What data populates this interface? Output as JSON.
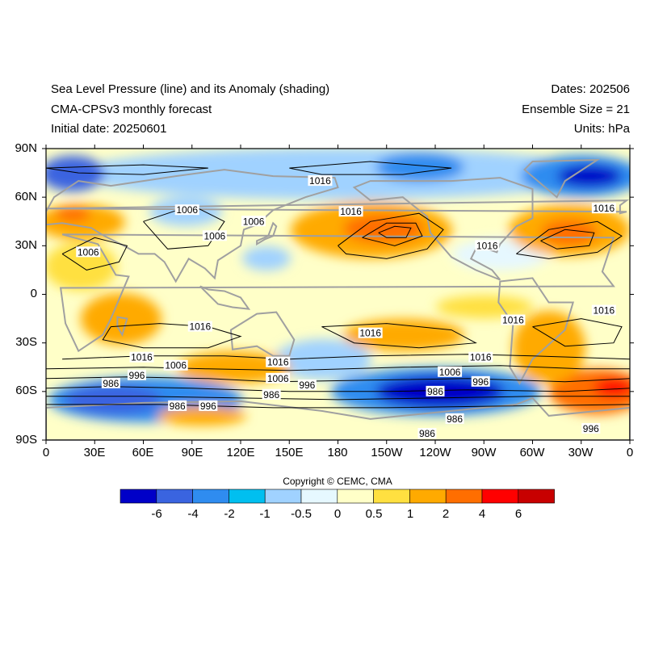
{
  "header": {
    "left": [
      "Sea Level Pressure (line) and its Anomaly (shading)",
      "CMA-CPSv3 monthly forecast",
      "Initial date: 20250601"
    ],
    "right": [
      "Dates: 202506",
      "Ensemble Size = 21",
      "Units: hPa"
    ]
  },
  "axes": {
    "lat_ticks": [
      "90N",
      "60N",
      "30N",
      "0",
      "30S",
      "60S",
      "90S"
    ],
    "lon_ticks": [
      "0",
      "30E",
      "60E",
      "90E",
      "120E",
      "150E",
      "180",
      "150W",
      "120W",
      "90W",
      "60W",
      "30W",
      "0"
    ]
  },
  "map": {
    "projection": "cylindrical equidistant",
    "lon_range": [
      0,
      360
    ],
    "lat_range": [
      -90,
      90
    ],
    "coastline_color": "#a0a0a0",
    "contour_color": "#000000",
    "contour_labels": [
      {
        "text": "1016",
        "lon": 169,
        "lat": 70
      },
      {
        "text": "1006",
        "lon": 87,
        "lat": 52
      },
      {
        "text": "1006",
        "lon": 128,
        "lat": 45
      },
      {
        "text": "1006",
        "lon": 104,
        "lat": 36
      },
      {
        "text": "1016",
        "lon": 188,
        "lat": 51
      },
      {
        "text": "1006",
        "lon": 26,
        "lat": 26
      },
      {
        "text": "1016",
        "lon": 344,
        "lat": 53
      },
      {
        "text": "1016",
        "lon": 272,
        "lat": 30
      },
      {
        "text": "1016",
        "lon": 344,
        "lat": -10
      },
      {
        "text": "1016",
        "lon": 288,
        "lat": -16
      },
      {
        "text": "1016",
        "lon": 95,
        "lat": -20
      },
      {
        "text": "1016",
        "lon": 200,
        "lat": -24
      },
      {
        "text": "1016",
        "lon": 143,
        "lat": -42
      },
      {
        "text": "1016",
        "lon": 268,
        "lat": -39
      },
      {
        "text": "1016",
        "lon": 59,
        "lat": -39
      },
      {
        "text": "1006",
        "lon": 80,
        "lat": -44
      },
      {
        "text": "996",
        "lon": 56,
        "lat": -50
      },
      {
        "text": "986",
        "lon": 40,
        "lat": -55
      },
      {
        "text": "1006",
        "lon": 143,
        "lat": -52
      },
      {
        "text": "996",
        "lon": 161,
        "lat": -56
      },
      {
        "text": "986",
        "lon": 139,
        "lat": -62
      },
      {
        "text": "1006",
        "lon": 249,
        "lat": -48
      },
      {
        "text": "996",
        "lon": 268,
        "lat": -54
      },
      {
        "text": "986",
        "lon": 240,
        "lat": -60
      },
      {
        "text": "986",
        "lon": 81,
        "lat": -69
      },
      {
        "text": "996",
        "lon": 100,
        "lat": -69
      },
      {
        "text": "986",
        "lon": 252,
        "lat": -77
      },
      {
        "text": "986",
        "lon": 235,
        "lat": -86
      },
      {
        "text": "996",
        "lon": 336,
        "lat": -83
      }
    ]
  },
  "chart_data": {
    "type": "heatmap",
    "title": "Sea Level Pressure (line) and its Anomaly (shading)",
    "variable_lines": "Sea Level Pressure",
    "variable_shading": "Sea Level Pressure Anomaly",
    "units": "hPa",
    "contour_levels": [
      986,
      996,
      1006,
      1016
    ],
    "anomaly_features": [
      {
        "name": "North Pacific high anomaly",
        "lon": 210,
        "lat": 40,
        "value": 4
      },
      {
        "name": "North Atlantic high anomaly",
        "lon": 320,
        "lat": 37,
        "value": 4
      },
      {
        "name": "Southeast Pacific low anomaly",
        "lon": 250,
        "lat": -58,
        "value": -6
      },
      {
        "name": "Arctic Canada low anomaly",
        "lon": 330,
        "lat": 73,
        "value": -6
      },
      {
        "name": "South Atlantic high anomaly",
        "lon": 350,
        "lat": -60,
        "value": 6
      },
      {
        "name": "Southern Indian Ocean low anomaly",
        "lon": 50,
        "lat": -58,
        "value": -2
      },
      {
        "name": "Europe high anomaly",
        "lon": 25,
        "lat": 48,
        "value": 2
      }
    ],
    "colorbar": {
      "labels": [
        "-6",
        "-4",
        "-2",
        "-1",
        "-0.5",
        "0",
        "0.5",
        "1",
        "2",
        "4",
        "6"
      ],
      "colors": [
        "#0000c8",
        "#3a64e0",
        "#2f8cf0",
        "#00bff0",
        "#a0d2ff",
        "#e6f8ff",
        "#ffffc8",
        "#ffe040",
        "#ffaa00",
        "#ff6e00",
        "#ff0000",
        "#c80000"
      ]
    }
  },
  "footer": {
    "copyright": "Copyright © CEMC, CMA"
  }
}
